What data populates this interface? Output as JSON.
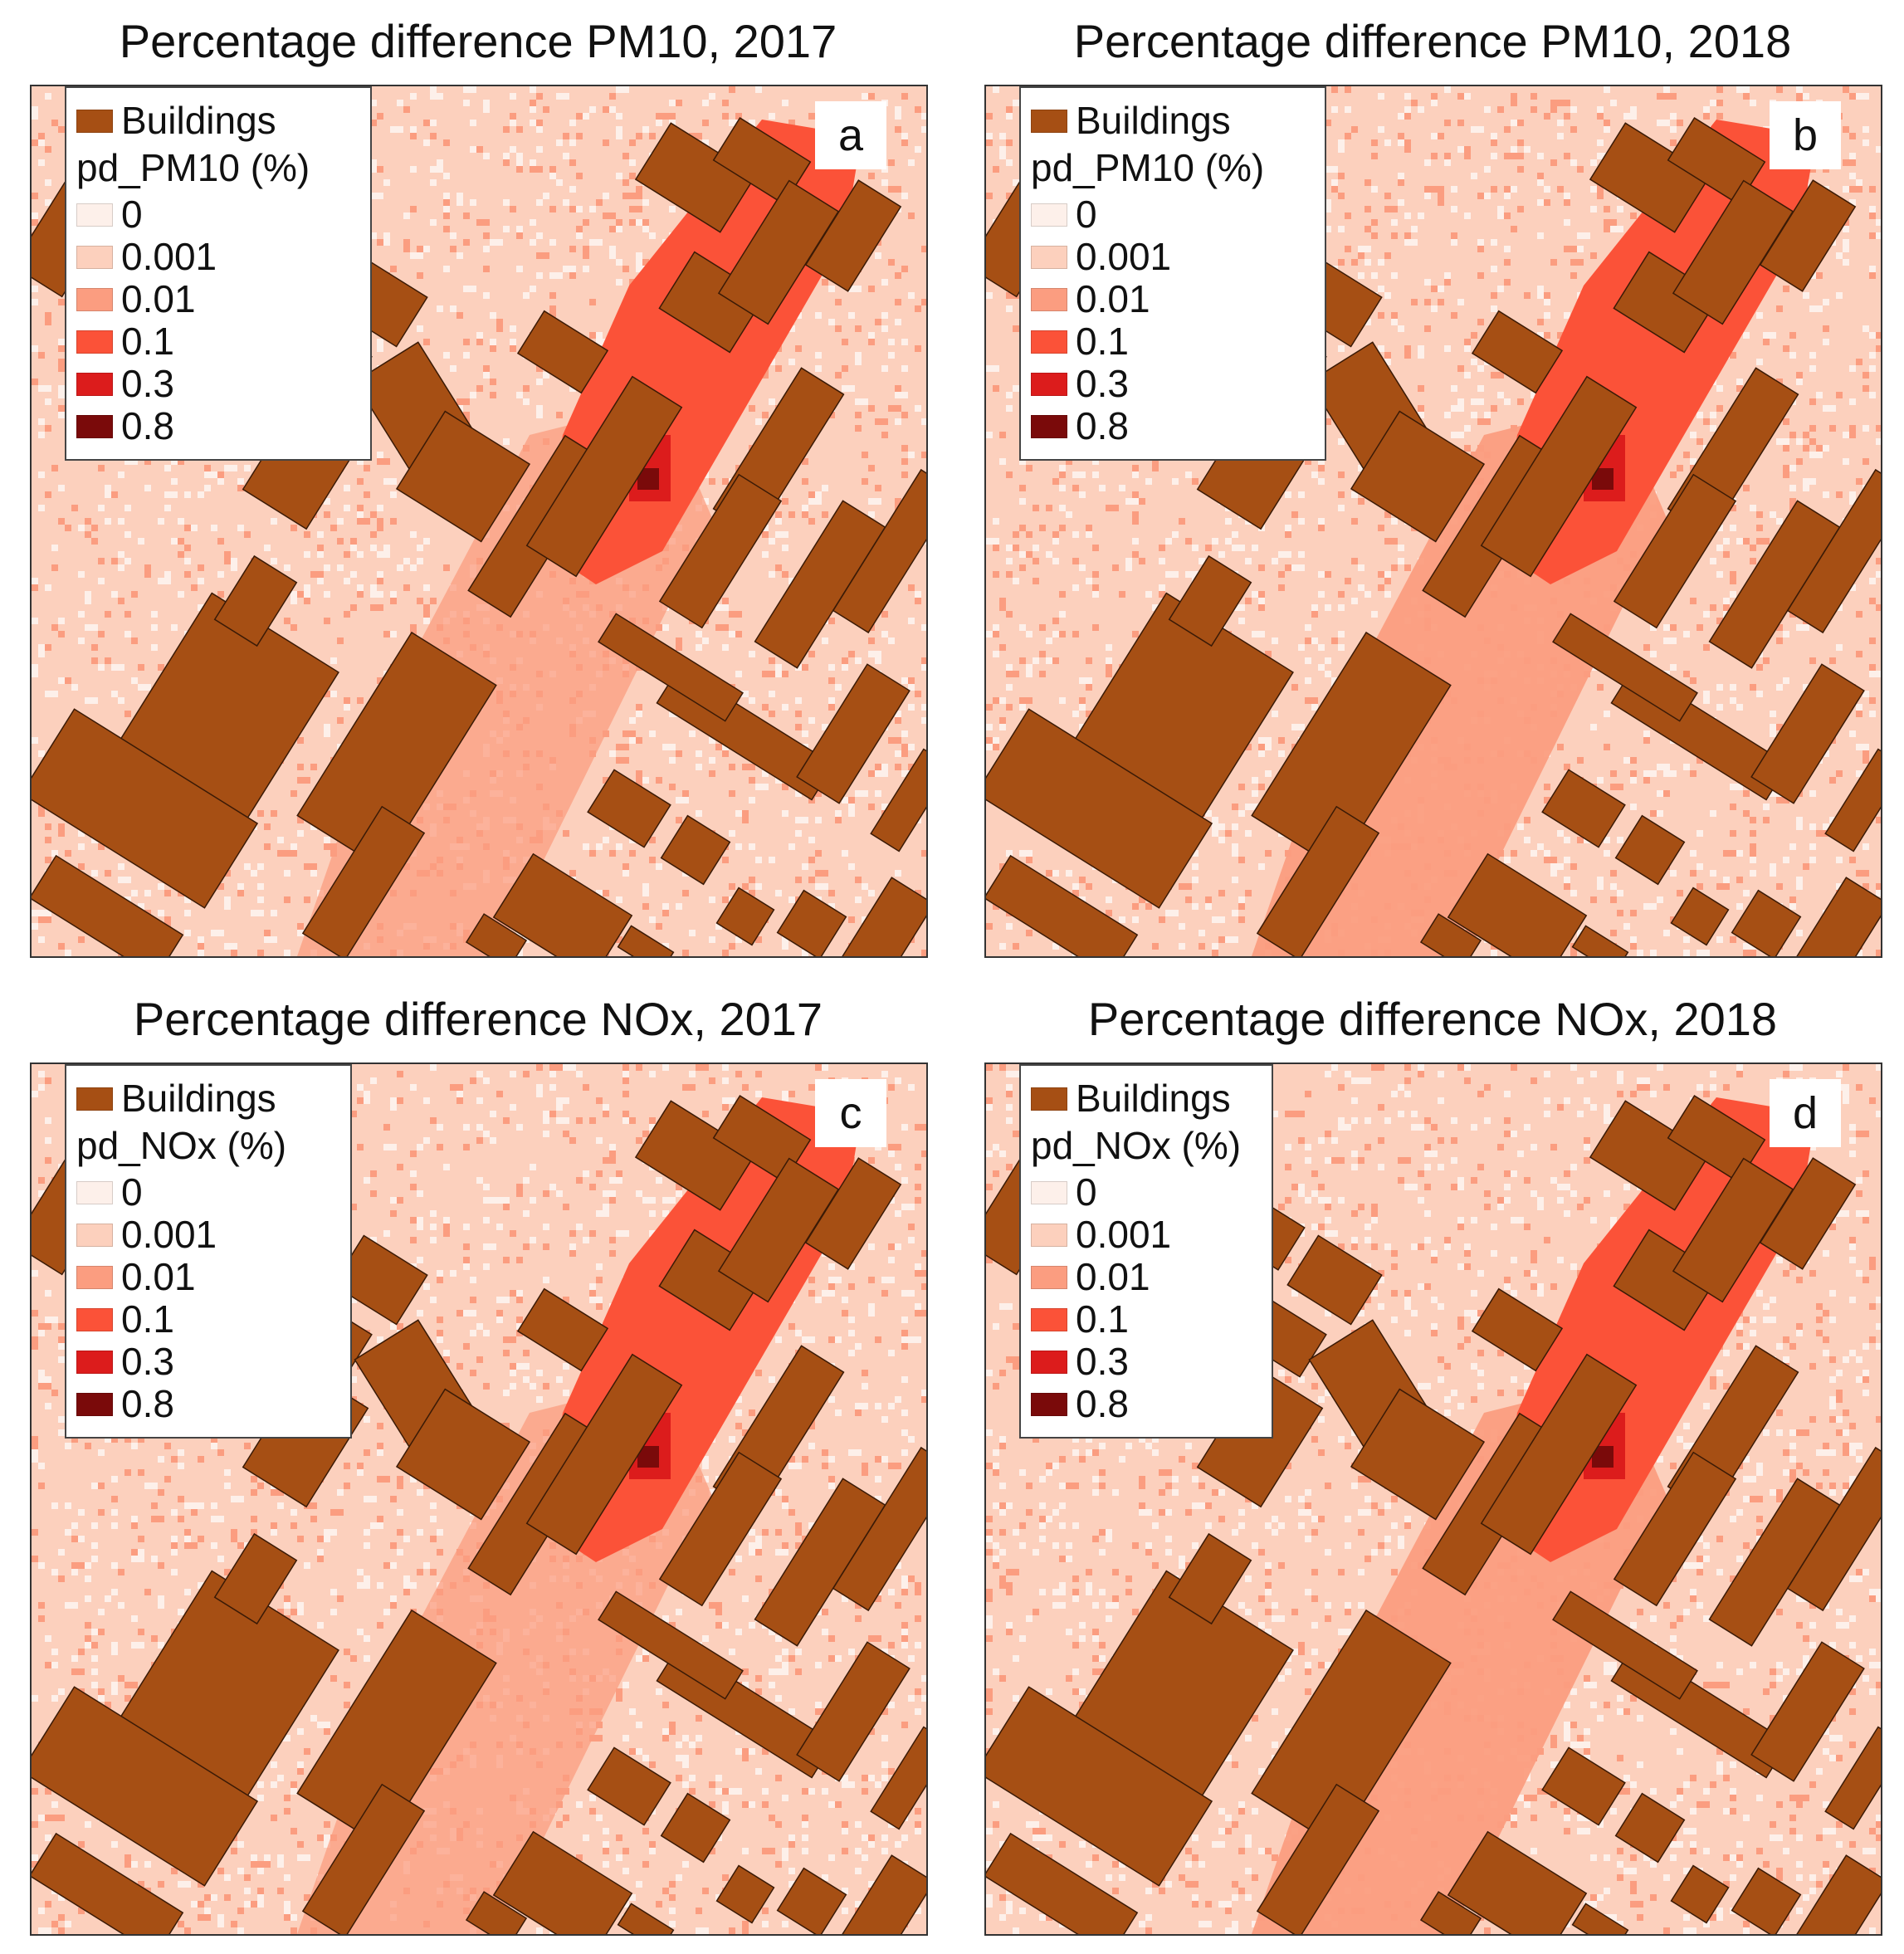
{
  "colors": {
    "buildings": "#a64f14",
    "building_stroke": "#3a1a06",
    "class_0": "#fdf0ea",
    "class_0001": "#fcd0bd",
    "class_001": "#fb9d80",
    "class_01": "#fb5238",
    "class_03": "#dc1c1c",
    "class_08": "#7a0a0a"
  },
  "panels": [
    {
      "id": "a",
      "title": "Percentage difference PM10, 2017",
      "letter": "a",
      "legend": {
        "buildings_label": "Buildings",
        "heading": "pd_PM10 (%)",
        "classes": [
          "0",
          "0.001",
          "0.01",
          "0.1",
          "0.3",
          "0.8"
        ]
      }
    },
    {
      "id": "b",
      "title": "Percentage difference PM10, 2018",
      "letter": "b",
      "legend": {
        "buildings_label": "Buildings",
        "heading": "pd_PM10 (%)",
        "classes": [
          "0",
          "0.001",
          "0.01",
          "0.1",
          "0.3",
          "0.8"
        ]
      }
    },
    {
      "id": "c",
      "title": "Percentage difference NOx, 2017",
      "letter": "c",
      "legend": {
        "buildings_label": "Buildings",
        "heading": "pd_NOx (%)",
        "classes": [
          "0",
          "0.001",
          "0.01",
          "0.1",
          "0.3",
          "0.8"
        ]
      }
    },
    {
      "id": "d",
      "title": "Percentage difference NOx, 2018",
      "letter": "d",
      "legend": {
        "buildings_label": "Buildings",
        "heading": "pd_NOx (%)",
        "classes": [
          "0",
          "0.001",
          "0.01",
          "0.1",
          "0.3",
          "0.8"
        ]
      }
    }
  ]
}
